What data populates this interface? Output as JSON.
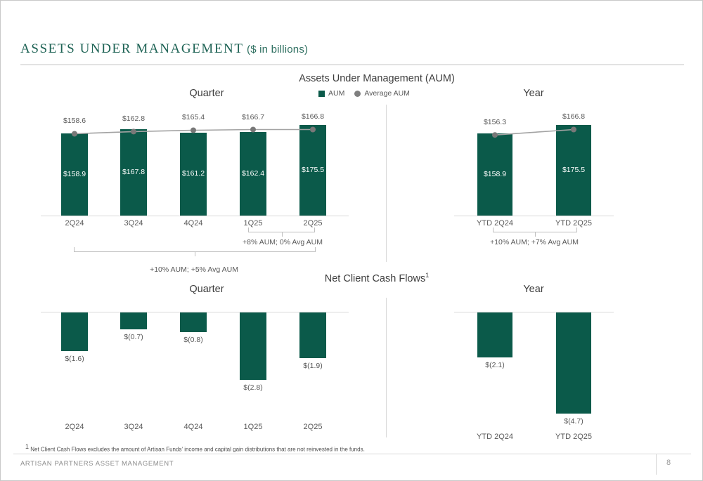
{
  "header": {
    "title": "ASSETS UNDER MANAGEMENT",
    "title_suffix": "($ in billions)"
  },
  "aum_section": {
    "title": "Assets Under Management (AUM)",
    "legend": [
      {
        "label": "AUM",
        "marker": "square",
        "color": "#0b5a4a"
      },
      {
        "label": "Average AUM",
        "marker": "circle",
        "color": "#7f7f7f"
      }
    ]
  },
  "nccf_section": {
    "title": "Net Client Cash Flows",
    "footnote_marker": "1"
  },
  "annotations": {
    "quarter_recent": "+8% AUM; 0% Avg AUM",
    "quarter_full": "+10% AUM; +5% Avg AUM",
    "year": "+10% AUM; +7% Avg AUM"
  },
  "chart_data": [
    {
      "id": "aum-quarter",
      "type": "bar",
      "title": "Quarter",
      "categories": [
        "2Q24",
        "3Q24",
        "4Q24",
        "1Q25",
        "2Q25"
      ],
      "series": [
        {
          "name": "AUM",
          "values": [
            158.9,
            167.8,
            161.2,
            162.4,
            175.5
          ]
        },
        {
          "name": "Average AUM",
          "values": [
            158.6,
            162.8,
            165.4,
            166.7,
            166.8
          ]
        }
      ],
      "ylim": [
        0,
        200
      ],
      "grid": false,
      "legend_position": "top-center"
    },
    {
      "id": "aum-year",
      "type": "bar",
      "title": "Year",
      "categories": [
        "YTD 2Q24",
        "YTD 2Q25"
      ],
      "series": [
        {
          "name": "AUM",
          "values": [
            158.9,
            175.5
          ]
        },
        {
          "name": "Average AUM",
          "values": [
            156.3,
            166.8
          ]
        }
      ],
      "ylim": [
        0,
        200
      ],
      "grid": false
    },
    {
      "id": "nccf-quarter",
      "type": "bar",
      "title": "Quarter",
      "categories": [
        "2Q24",
        "3Q24",
        "4Q24",
        "1Q25",
        "2Q25"
      ],
      "series": [
        {
          "name": "Net Client Cash Flows",
          "values": [
            -1.6,
            -0.7,
            -0.8,
            -2.8,
            -1.9
          ]
        }
      ],
      "ylim": [
        -3,
        0
      ],
      "grid": false
    },
    {
      "id": "nccf-year",
      "type": "bar",
      "title": "Year",
      "categories": [
        "YTD 2Q24",
        "YTD 2Q25"
      ],
      "series": [
        {
          "name": "Net Client Cash Flows",
          "values": [
            -2.1,
            -4.7
          ]
        }
      ],
      "ylim": [
        -5,
        0
      ],
      "grid": false
    }
  ],
  "footnote": {
    "marker": "1",
    "text": " Net Client Cash Flows excludes the amount of Artisan Funds' income and capital gain distributions that are not reinvested in the funds."
  },
  "footer": {
    "company": "ARTISAN PARTNERS ASSET MANAGEMENT",
    "page_number": "8"
  },
  "colors": {
    "bar_green": "#0b5a4a",
    "avg_line": "#a3a3a3",
    "avg_marker": "#787878",
    "title_green": "#1e6355",
    "axis_gray": "#d9d9d9",
    "text_gray": "#595959"
  }
}
